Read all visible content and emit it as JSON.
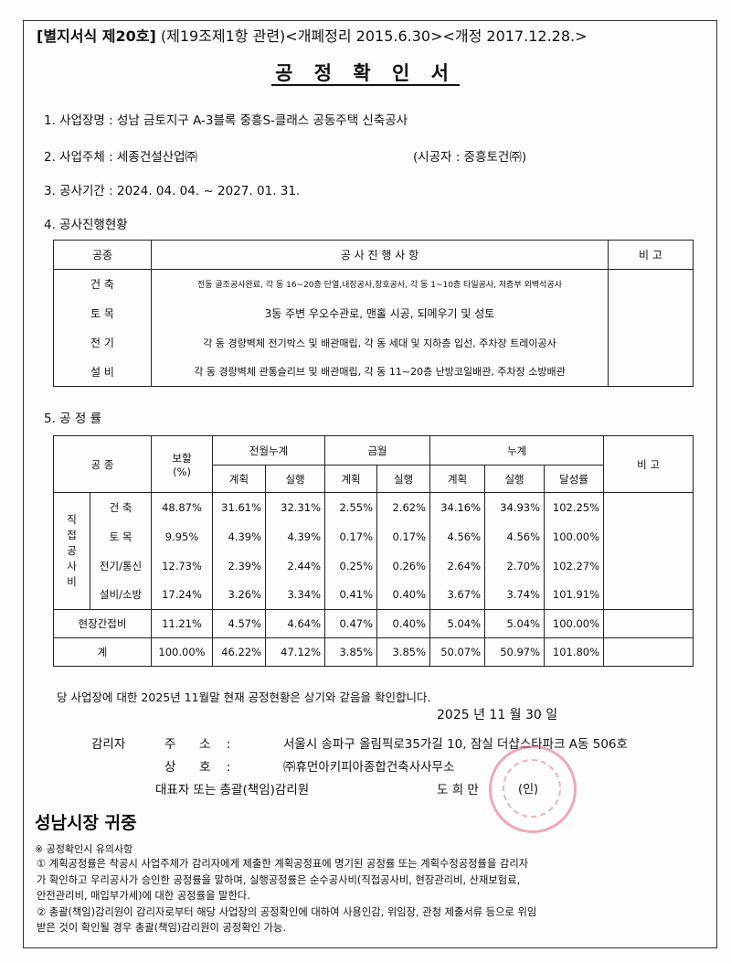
{
  "header": {
    "form_number": "[별지서식 제20호]",
    "form_note": " (제19조제1항 관련)<개폐정리 2015.6.30><개정 2017.12.28.>"
  },
  "title": "공 정 확 인 서",
  "fields": {
    "project_name": "1. 사업장명 :  성남 금토지구 A-3블록 중흥S-클래스 공동주택 신축공사",
    "owner": "2. 사업주체 :  세종건설산업㈜",
    "contractor": "(시공자 : 중흥토건㈜)",
    "period": "3. 공사기간 : 2024. 04. 04. ~ 2027. 01. 31."
  },
  "section4": {
    "title": "4. 공사진행현황",
    "headers": [
      "공종",
      "공 사 진 행 사 항",
      "비 고"
    ],
    "rows": [
      {
        "trade": "건 축",
        "detail": "전동 골조공사완료, 각 동 16~20층 단열,내장공사,창호공사, 각 동 1~10층 타일공사, 저층부 외벽석공사"
      },
      {
        "trade": "토 목",
        "detail": "3동 주변 우오수관로, 맨홀 시공, 되메우기 및 성토"
      },
      {
        "trade": "전 기",
        "detail": "각 동 경량벽체 전기박스 및 배관매립, 각 동 세대 및 지하층 입선, 주차장 트레이공사"
      },
      {
        "trade": "설 비",
        "detail": "각 동 경량벽체 관통슬리브 및 배관매립, 각 동 11~20층 난방코일배관, 주차장 소방배관"
      }
    ]
  },
  "section5": {
    "title": "5. 공 정 률",
    "headers": {
      "trade": "공 종",
      "weight": "보할\n(%)",
      "prev": "전월누계",
      "month": "금월",
      "cum": "누계",
      "plan": "계획",
      "actual": "실행",
      "rate": "달성률",
      "note": "비 고"
    },
    "group_label": "직\n접\n공\n사\n비",
    "rows": [
      {
        "trade": "건 축",
        "values": [
          "48.87%",
          "31.61%",
          "32.31%",
          "2.55%",
          "2.62%",
          "34.16%",
          "34.93%",
          "102.25%"
        ]
      },
      {
        "trade": "토 목",
        "values": [
          "9.95%",
          "4.39%",
          "4.39%",
          "0.17%",
          "0.17%",
          "4.56%",
          "4.56%",
          "100.00%"
        ]
      },
      {
        "trade": "전기/통신",
        "values": [
          "12.73%",
          "2.39%",
          "2.44%",
          "0.25%",
          "0.26%",
          "2.64%",
          "2.70%",
          "102.27%"
        ]
      },
      {
        "trade": "설비/소방",
        "values": [
          "17.24%",
          "3.26%",
          "3.34%",
          "0.41%",
          "0.40%",
          "3.67%",
          "3.74%",
          "101.91%"
        ]
      }
    ],
    "indirect": {
      "trade": "현장간접비",
      "values": [
        "11.21%",
        "4.57%",
        "4.64%",
        "0.47%",
        "0.40%",
        "5.04%",
        "5.04%",
        "100.00%"
      ]
    },
    "total": {
      "trade": "계",
      "values": [
        "100.00%",
        "46.22%",
        "47.12%",
        "3.85%",
        "3.85%",
        "50.07%",
        "50.97%",
        "101.80%"
      ]
    }
  },
  "confirmation": {
    "statement": "당 사업장에 대한   2025년 11월말 현재 공정현황은 상기와 같음을 확인합니다.",
    "date": "2025 년 11 월 30 일",
    "supervisor_label": "감리자",
    "address_label": "주      소    :",
    "address": "서울시 송파구 올림픽로35가길 10, 잠실 더샵스타파크 A동 506호",
    "company_label": "상      호    :",
    "company": "㈜휴먼아키피아종합건축사사무소",
    "rep_label": "대표자 또는 총괄(책임)감리원",
    "rep_name": "도 희 만",
    "seal_mark": "(인)"
  },
  "recipient": "성남시장 귀중",
  "notes": {
    "title": "※ 공정확인시 유의사항",
    "lines": [
      "① 계획공정률은 착공시 사업주체가 감리자에게 제출한 계획공정표에 명기된 공정률 또는 계획수정공정률을 감리자",
      "가 확인하고 우리공사가 승인한 공정률을 말하며, 실행공정률은 순수공사비(직접공사비, 현장관리비, 산재보험료,",
      "안전관리비, 매입부가세)에 대한 공정률을 말한다.",
      "② 총괄(책임)감리원이 감리자로부터 해당 사업장의 공정확인에 대하여 사용인감, 위임장, 관청 제출서류 등으로 위임",
      "받은 것이 확인될 경우 총괄(책임)감리원이 공정확인 가능."
    ]
  },
  "colors": {
    "seal": "#dc3c5a"
  }
}
